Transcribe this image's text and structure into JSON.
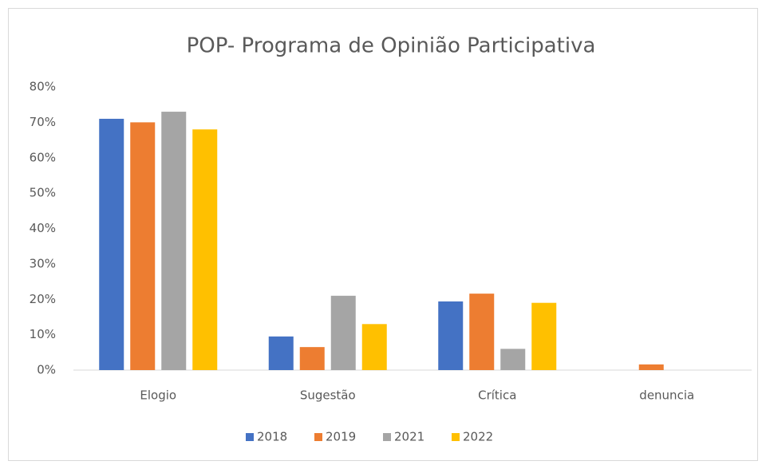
{
  "chart_data": {
    "type": "bar",
    "title": "POP- Programa de Opinião Participativa",
    "categories": [
      "Elogio",
      "Sugestão",
      "Crítica",
      "denuncia"
    ],
    "series": [
      {
        "name": "2018",
        "color": "#4472c4",
        "values": [
          71,
          9.5,
          19.4,
          0
        ]
      },
      {
        "name": "2019",
        "color": "#ed7d31",
        "values": [
          70,
          6.5,
          21.6,
          1.6
        ]
      },
      {
        "name": "2021",
        "color": "#a5a5a5",
        "values": [
          73,
          21,
          6,
          0
        ]
      },
      {
        "name": "2022",
        "color": "#ffc000",
        "values": [
          68,
          13,
          19,
          0
        ]
      }
    ],
    "ylim": [
      0,
      80
    ],
    "yticks": [
      {
        "value": 0,
        "label": "0%"
      },
      {
        "value": 10,
        "label": "10%"
      },
      {
        "value": 20,
        "label": "20%"
      },
      {
        "value": 30,
        "label": "30%"
      },
      {
        "value": 40,
        "label": "40%"
      },
      {
        "value": 50,
        "label": "50%"
      },
      {
        "value": 60,
        "label": "60%"
      },
      {
        "value": 70,
        "label": "70%"
      },
      {
        "value": 80,
        "label": "80%"
      }
    ],
    "grid": false,
    "legend": "bottom"
  }
}
